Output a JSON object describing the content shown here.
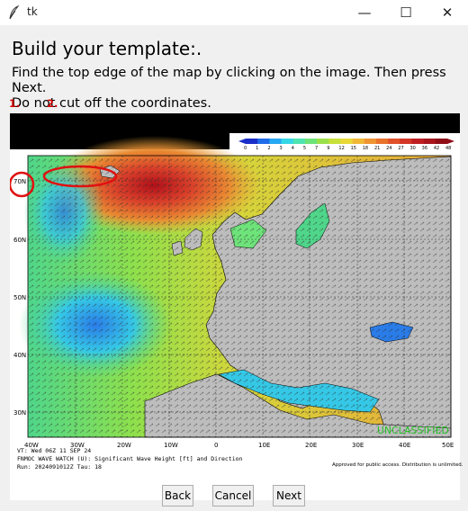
{
  "window": {
    "title": "tk",
    "icons": {
      "app": "feather-icon",
      "minimize": "minimize-icon",
      "maximize": "maximize-icon",
      "close": "close-icon"
    },
    "minimize_glyph": "—",
    "maximize_glyph": "☐",
    "close_glyph": "✕"
  },
  "header": {
    "title": "Build your template:.",
    "instruction_line1": "Find the top edge of the map by clicking on the image. Then press Next.",
    "instruction_line2": "Do not cut off the coordinates.",
    "step1": "1.",
    "step2": "2."
  },
  "map": {
    "colorbar_ticks": [
      "0",
      "1",
      "2",
      "3",
      "4",
      "5",
      "7",
      "9",
      "12",
      "15",
      "18",
      "21",
      "24",
      "27",
      "30",
      "36",
      "42",
      "48"
    ],
    "colorbar_colors": [
      "#1a2ec8",
      "#1f6be8",
      "#27a8f2",
      "#35d7e6",
      "#4ee3b0",
      "#6ee37a",
      "#9be04a",
      "#c7e03a",
      "#e8d838",
      "#f0b838",
      "#ef9432",
      "#e9722d",
      "#e0512a",
      "#d23426",
      "#bf1f22",
      "#a8151c",
      "#8f0d17"
    ],
    "lat_labels": [
      "70N",
      "60N",
      "50N",
      "40N",
      "30N"
    ],
    "lon_labels": [
      "40W",
      "30W",
      "20W",
      "10W",
      "0",
      "10E",
      "20E",
      "30E",
      "40E",
      "50E"
    ],
    "classification": "UNCLASSIFIED",
    "classification_color": "#22c322",
    "footer_line1": "VT: Wed 06Z 11 SEP 24",
    "footer_line2": "FNMOC WAVE WATCH (U): Significant Wave Height [ft] and Direction",
    "footer_line3": "Run: 2024091012Z Tau: 18",
    "approved_text": "Approved for public access. Distribution is unlimited."
  },
  "buttons": {
    "back": "Back",
    "cancel": "Cancel",
    "next": "Next"
  }
}
